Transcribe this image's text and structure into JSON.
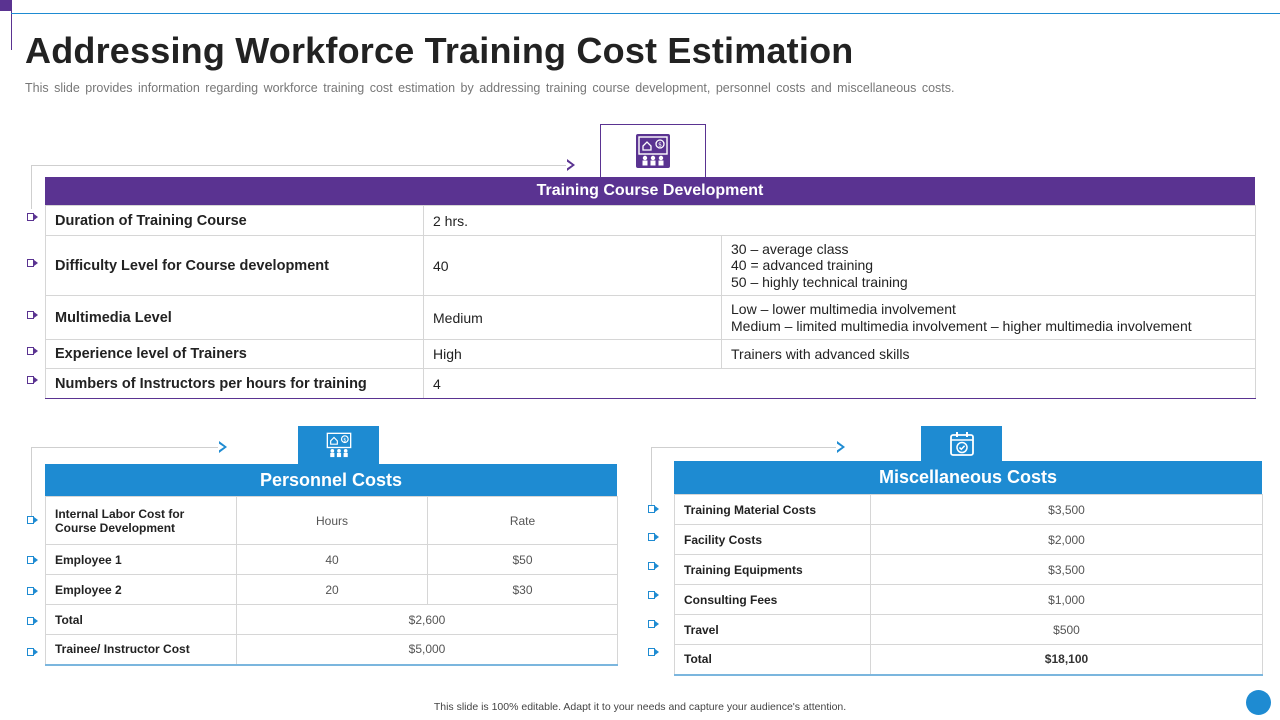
{
  "title": "Addressing Workforce Training Cost Estimation",
  "subtitle": "This slide provides information regarding workforce training cost estimation by addressing training course development, personnel costs and miscellaneous costs.",
  "colors": {
    "purple": "#5a3391",
    "blue": "#1e8bd2",
    "light_blue": "#7bb6de"
  },
  "icons": {
    "training": "training-presentation-icon",
    "personnel": "personnel-presentation-icon",
    "misc": "calendar-check-icon"
  },
  "training": {
    "header": "Training Course Development",
    "rows": [
      {
        "label": "Duration of Training Course",
        "value": "2 hrs.",
        "notes": []
      },
      {
        "label": "Difficulty Level for Course development",
        "value": "40",
        "notes": [
          "30 – average class",
          "40 = advanced training",
          "50 – highly technical training"
        ]
      },
      {
        "label": "Multimedia Level",
        "value": "Medium",
        "notes": [
          "Low – lower multimedia involvement",
          "Medium – limited multimedia involvement – higher multimedia involvement"
        ]
      },
      {
        "label": "Experience level of Trainers",
        "value": "High",
        "notes": [
          "Trainers with advanced skills"
        ]
      },
      {
        "label": "Numbers of Instructors per hours for training",
        "value": "4",
        "notes": []
      }
    ]
  },
  "personnel": {
    "header": "Personnel Costs",
    "col_label": "Internal Labor Cost for Course Development",
    "col_hours": "Hours",
    "col_rate": "Rate",
    "rows": [
      {
        "label": "Employee 1",
        "hours": "40",
        "rate": "$50"
      },
      {
        "label": "Employee 2",
        "hours": "20",
        "rate": "$30"
      }
    ],
    "total_label": "Total",
    "total_value": "$2,600",
    "trainee_label": "Trainee/ Instructor Cost",
    "trainee_value": "$5,000"
  },
  "misc": {
    "header": "Miscellaneous Costs",
    "rows": [
      {
        "label": "Training Material Costs",
        "value": "$3,500"
      },
      {
        "label": "Facility Costs",
        "value": "$2,000"
      },
      {
        "label": "Training Equipments",
        "value": "$3,500"
      },
      {
        "label": "Consulting Fees",
        "value": "$1,000"
      },
      {
        "label": "Travel",
        "value": "$500"
      },
      {
        "label": "Total",
        "value": "$18,100"
      }
    ]
  },
  "footer": "This slide is 100% editable. Adapt it to your needs and capture your audience's attention."
}
